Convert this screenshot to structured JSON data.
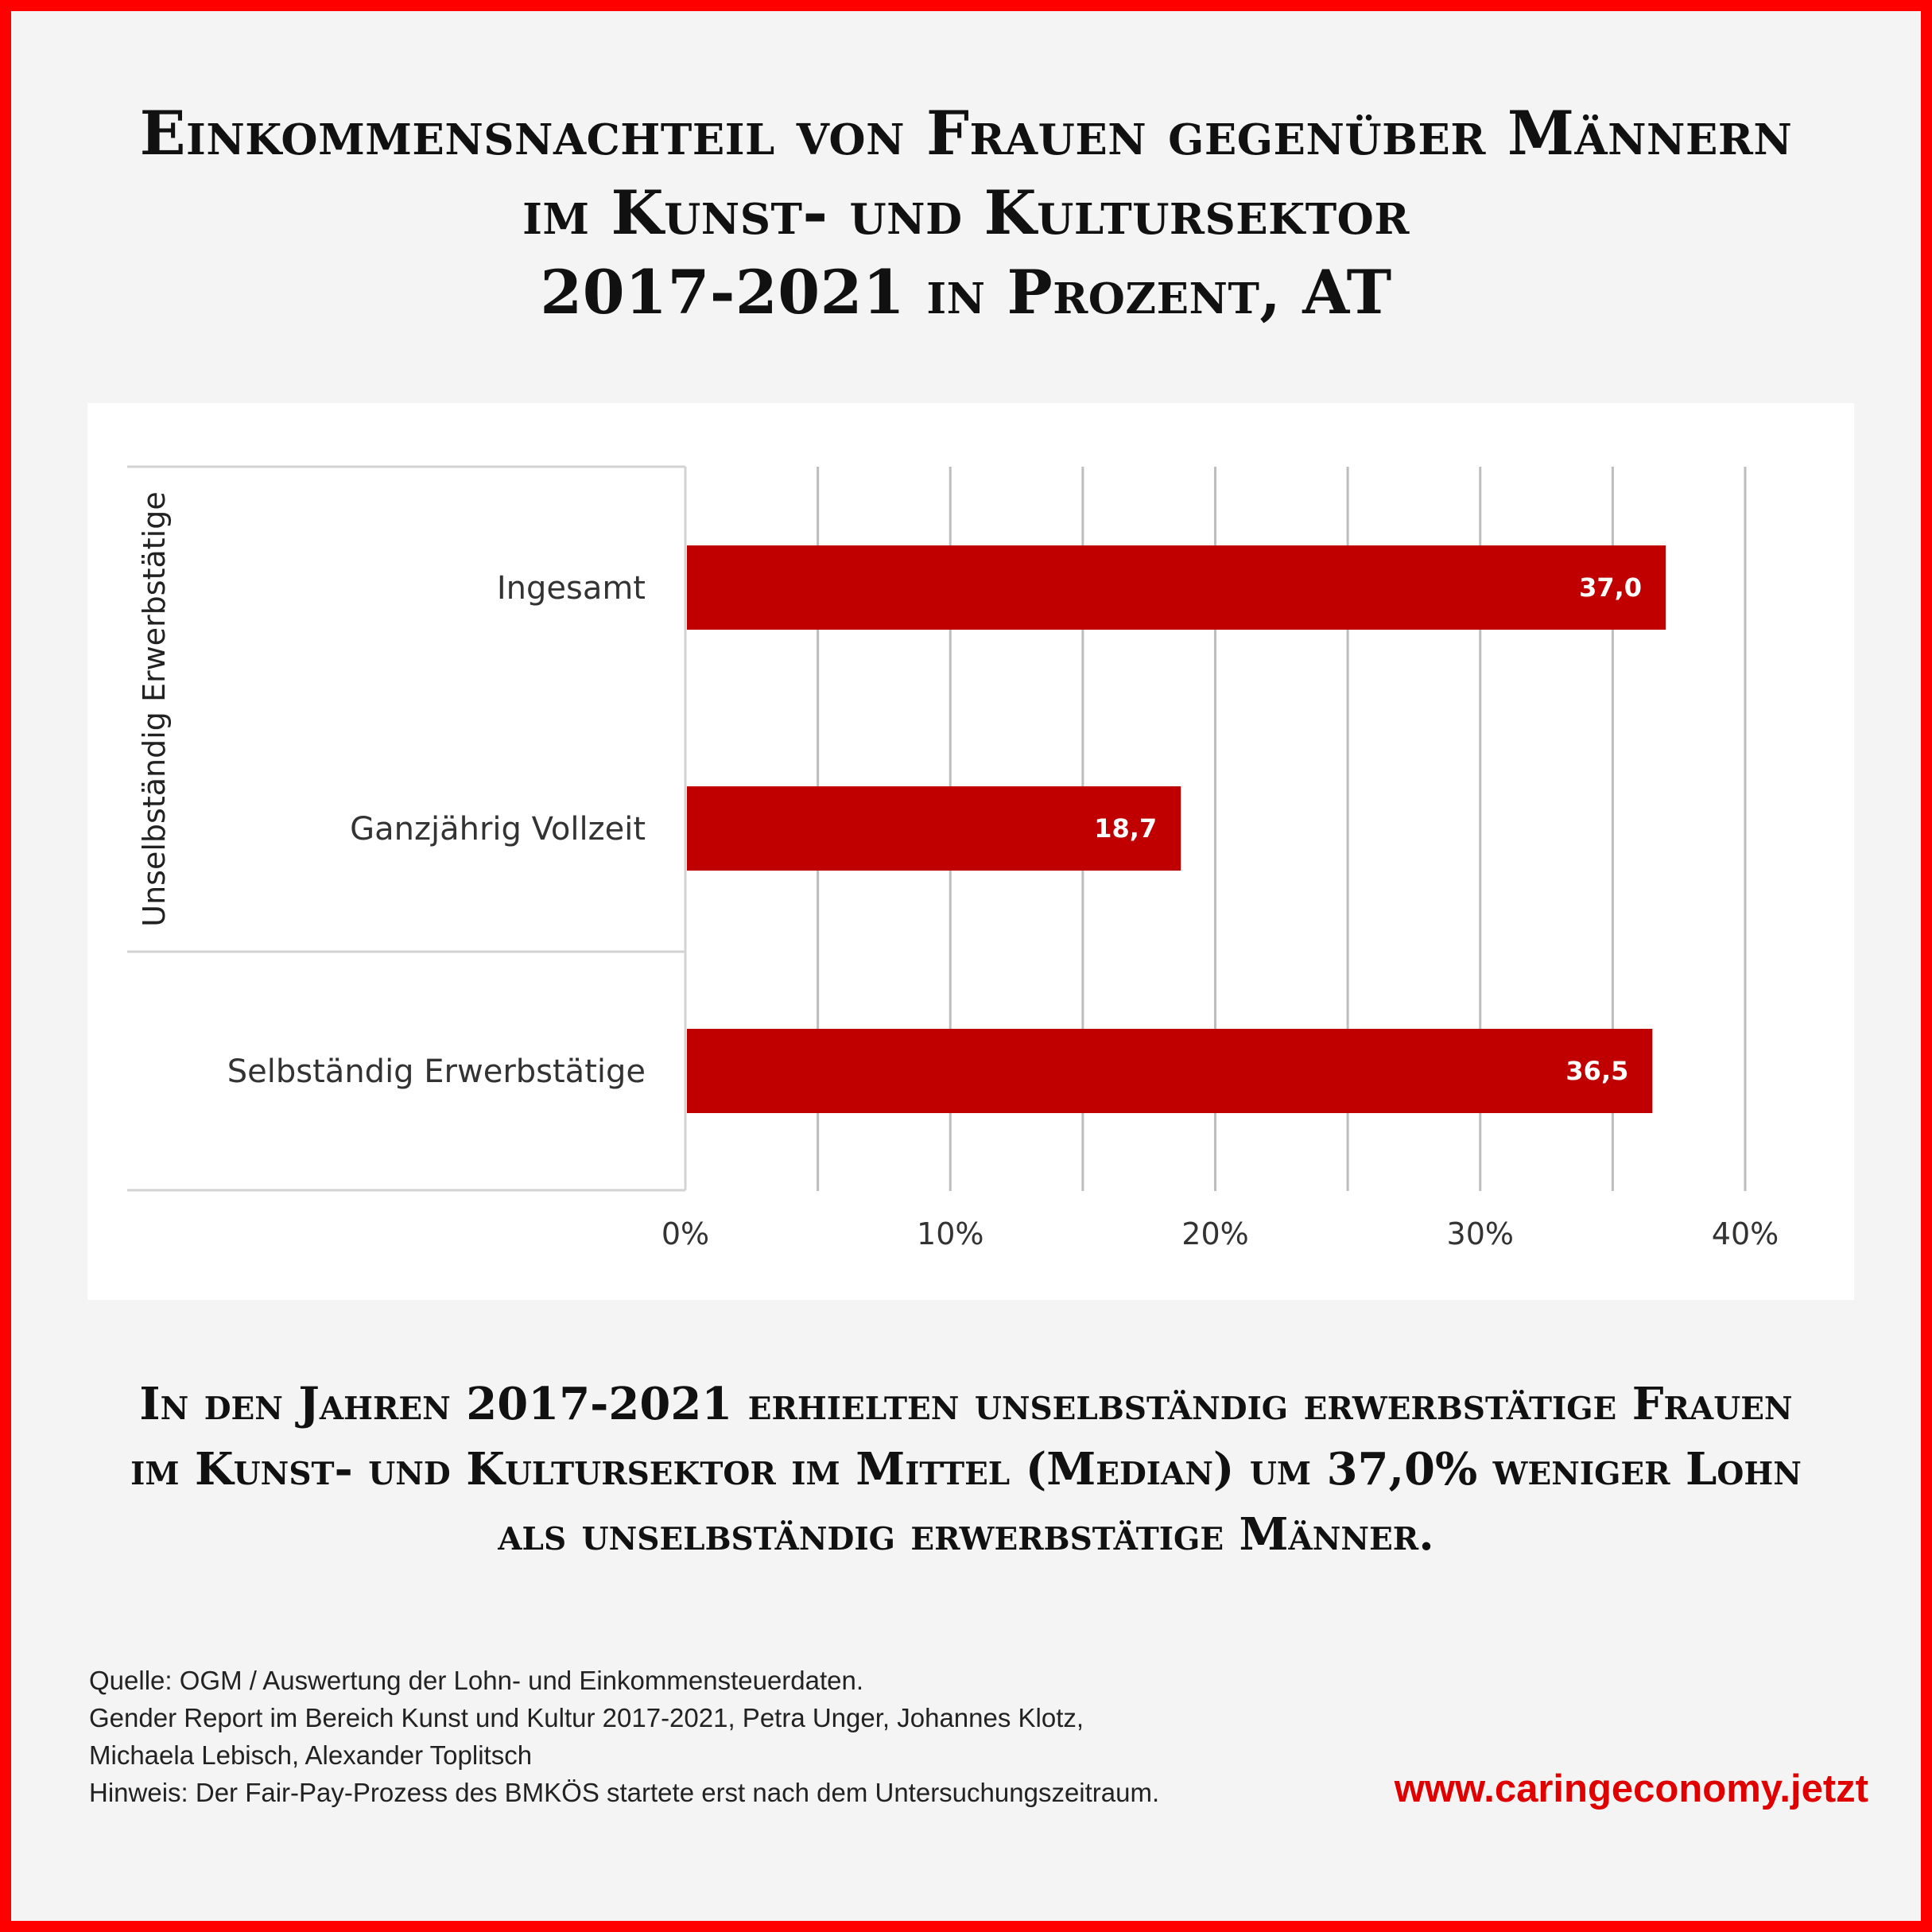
{
  "title": {
    "lines": [
      "Einkommensnachteil von Frauen gegenüber Männern",
      "im Kunst- und Kultursektor",
      "2017-2021 in Prozent, AT"
    ]
  },
  "chart_data": {
    "type": "bar",
    "orientation": "horizontal",
    "group_label": "Unselbständig Erwerbstätige",
    "categories": [
      "Ingesamt",
      "Ganzjährig Vollzeit",
      "Selbständig Erwerbstätige"
    ],
    "values": [
      37.0,
      18.7,
      36.5
    ],
    "value_labels": [
      "37,0",
      "18,7",
      "36,5"
    ],
    "x_ticks": [
      "0%",
      "10%",
      "20%",
      "30%",
      "40%"
    ],
    "xlim": [
      0,
      40
    ],
    "grid": true,
    "bar_color": "#c00000"
  },
  "summary": {
    "lines": [
      "In den Jahren 2017-2021 erhielten unselbständig erwerbstätige Frauen",
      "im Kunst- und Kultursektor im Mittel (Median) um 37,0% weniger Lohn",
      "als unselbständig erwerbstätige Männer."
    ]
  },
  "source": {
    "lines": [
      "Quelle: OGM / Auswertung der Lohn- und Einkommensteuerdaten.",
      "Gender Report im Bereich Kunst und Kultur 2017-2021, Petra Unger, Johannes Klotz,",
      "Michaela Lebisch, Alexander Toplitsch",
      "Hinweis: Der Fair-Pay-Prozess des BMKÖS startete erst nach dem Untersuchungszeitraum."
    ]
  },
  "website": "www.caringeconomy.jetzt",
  "colors": {
    "frame": "#ff0000",
    "background": "#f4f4f4",
    "bar": "#c00000",
    "website": "#e00000"
  }
}
